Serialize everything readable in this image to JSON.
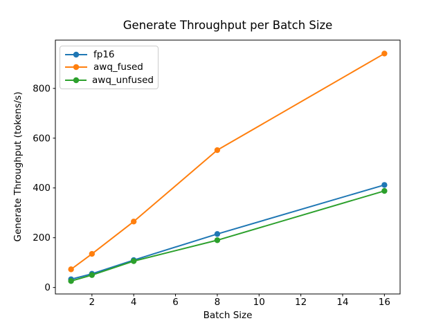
{
  "chart_data": {
    "type": "line",
    "title": "Generate Throughput per Batch Size",
    "xlabel": "Batch Size",
    "ylabel": "Generate Throughput (tokens/s)",
    "x": [
      1,
      2,
      4,
      8,
      16
    ],
    "series": [
      {
        "name": "fp16",
        "color": "#1f77b4",
        "values": [
          33,
          55,
          110,
          215,
          412
        ]
      },
      {
        "name": "awq_fused",
        "color": "#ff7f0e",
        "values": [
          73,
          135,
          265,
          552,
          940
        ]
      },
      {
        "name": "awq_unfused",
        "color": "#2ca02c",
        "values": [
          26,
          50,
          106,
          190,
          388
        ]
      }
    ],
    "xticks": [
      2,
      4,
      6,
      8,
      10,
      12,
      14,
      16
    ],
    "yticks": [
      0,
      200,
      400,
      600,
      800
    ],
    "xlim": [
      0.25,
      16.75
    ],
    "ylim": [
      -26,
      994
    ],
    "legend_position": "upper left",
    "grid": false,
    "marker": "o",
    "axis_color": "#000000",
    "background": "#ffffff"
  }
}
